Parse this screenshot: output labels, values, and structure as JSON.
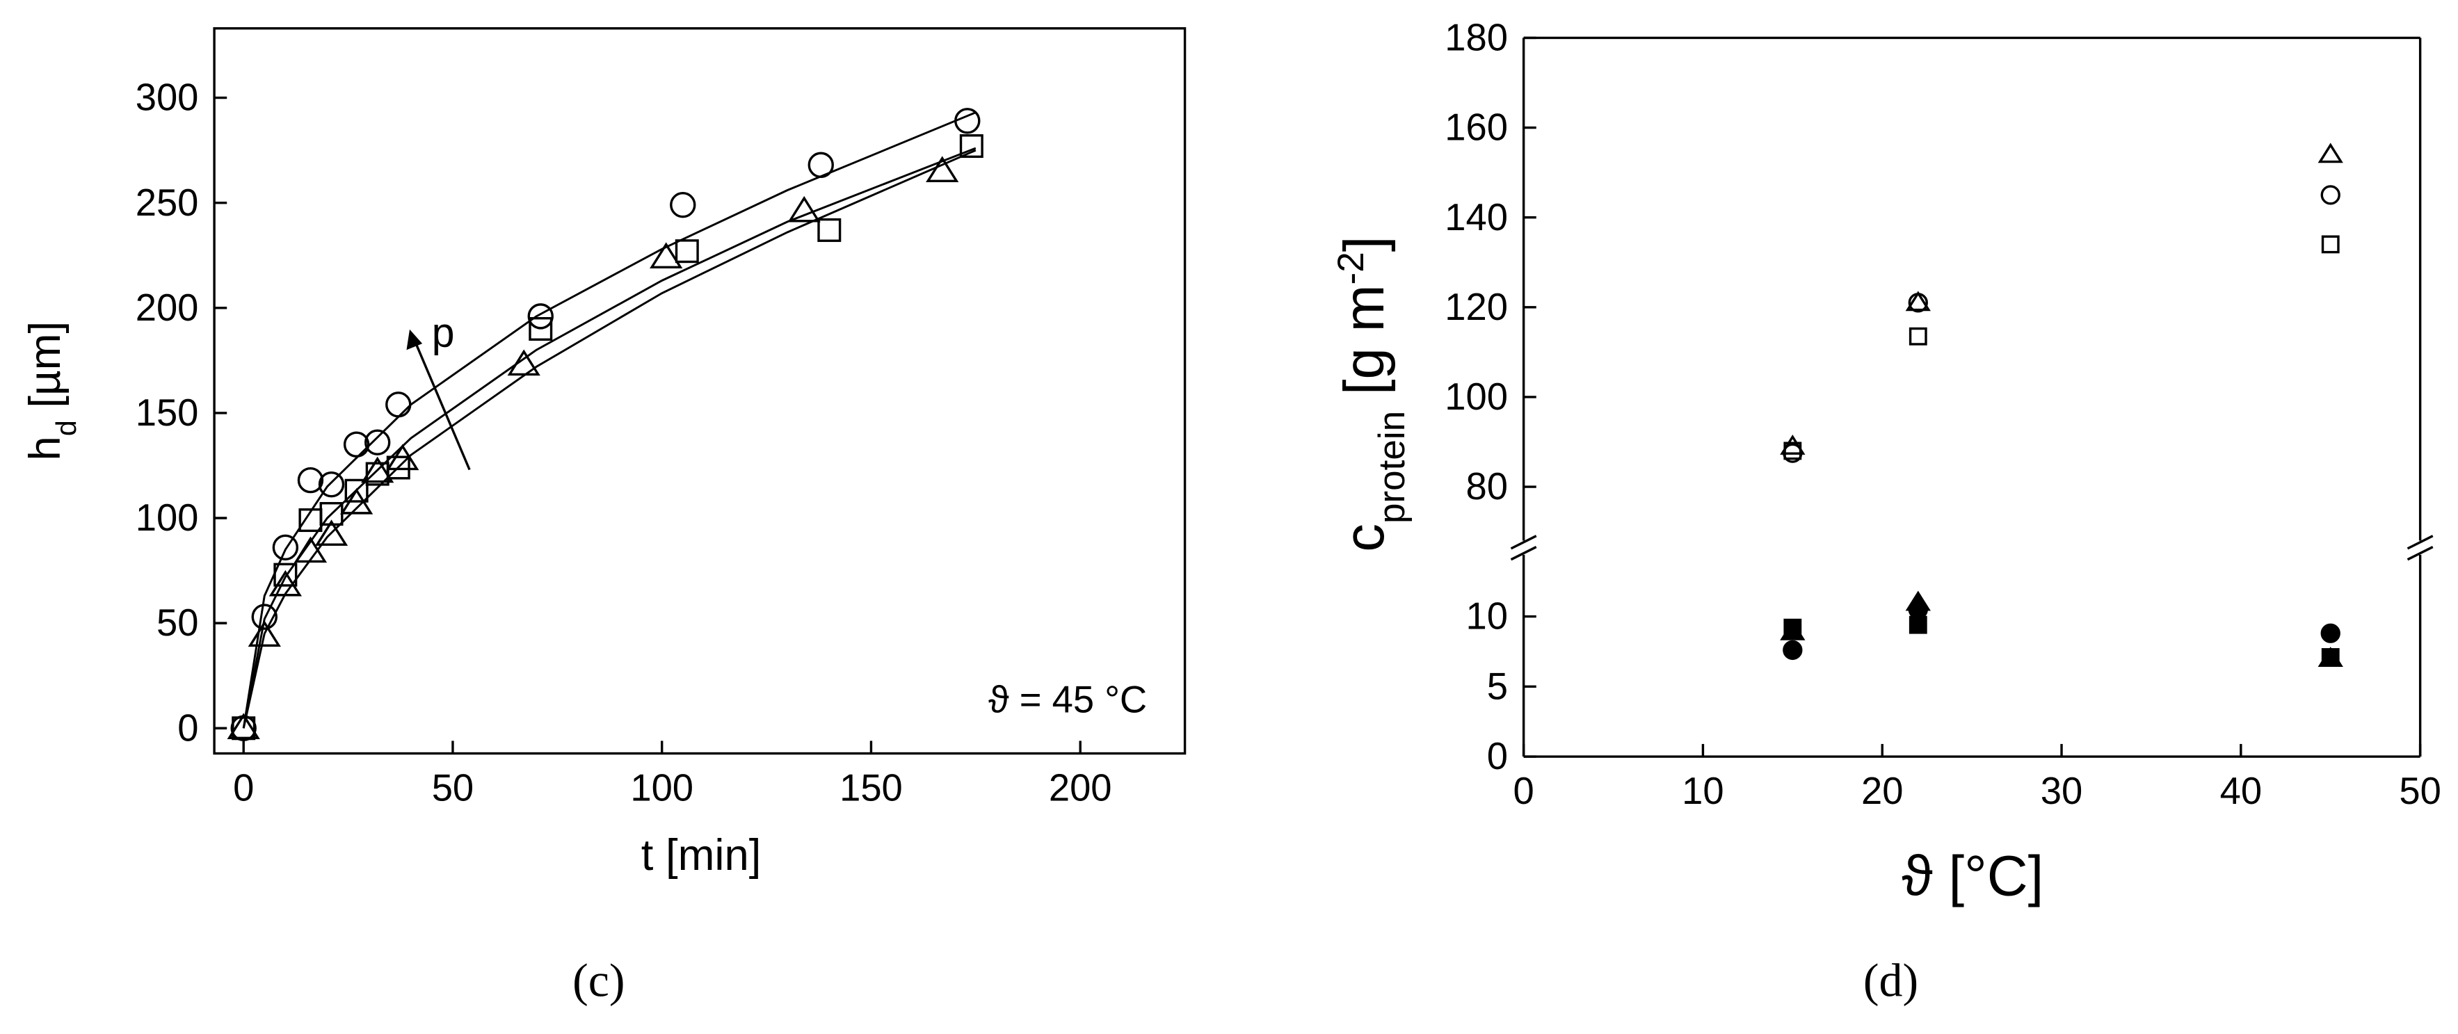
{
  "chart_data": [
    {
      "type": "scatter",
      "caption": "(c)",
      "xlabel": "t [min]",
      "ylabel": [
        {
          "text": "h"
        },
        {
          "text": "d",
          "shift": "sub"
        },
        {
          "text": " [µm]"
        }
      ],
      "annotations": [
        "ϑ = 45 °C",
        "p"
      ],
      "xlim": [
        -7,
        225
      ],
      "xticks": [
        0,
        50,
        100,
        150,
        200
      ],
      "ylim": [
        -12,
        333
      ],
      "yticks": [
        0,
        50,
        100,
        150,
        200,
        250,
        300
      ],
      "series": [
        {
          "marker": "circle",
          "filled": false,
          "color": "#000000",
          "x": [
            0,
            5,
            10,
            16,
            21,
            27,
            32,
            37,
            71,
            105,
            138,
            173
          ],
          "values": [
            0,
            53,
            86,
            118,
            116,
            135,
            136,
            154,
            196,
            249,
            268,
            289
          ]
        },
        {
          "marker": "square",
          "filled": false,
          "color": "#000000",
          "x": [
            0,
            10,
            16,
            21,
            27,
            32,
            37,
            71,
            106,
            140,
            174
          ],
          "values": [
            0,
            73,
            99,
            102,
            113,
            121,
            124,
            190,
            227,
            237,
            277
          ]
        },
        {
          "marker": "triangle",
          "filled": false,
          "color": "#000000",
          "x": [
            0,
            5,
            10,
            16,
            21,
            27,
            32,
            38,
            67,
            101,
            134,
            167
          ],
          "values": [
            0,
            44,
            68,
            84,
            92,
            107,
            122,
            128,
            173,
            224,
            246,
            265
          ]
        }
      ],
      "fits": [
        {
          "color": "#000000",
          "x": [
            0,
            5,
            10,
            20,
            40,
            70,
            100,
            130,
            175
          ],
          "values": [
            0,
            63,
            85,
            115,
            154,
            196,
            228,
            256,
            293
          ]
        },
        {
          "color": "#000000",
          "x": [
            0,
            5,
            10,
            20,
            40,
            70,
            100,
            130,
            175
          ],
          "values": [
            0,
            52,
            72,
            100,
            138,
            180,
            213,
            241,
            276
          ]
        },
        {
          "color": "#000000",
          "x": [
            0,
            5,
            10,
            20,
            40,
            70,
            100,
            130,
            175
          ],
          "values": [
            0,
            45,
            64,
            91,
            130,
            172,
            207,
            236,
            275
          ]
        }
      ]
    },
    {
      "type": "scatter",
      "caption": "(d)",
      "xlabel": "ϑ [°C]",
      "ylabel": [
        {
          "text": "c"
        },
        {
          "text": "protein",
          "shift": "sub"
        },
        {
          "text": " [g m"
        },
        {
          "text": "-2",
          "shift": "super"
        },
        {
          "text": "]"
        }
      ],
      "xlim": [
        0,
        50
      ],
      "xticks": [
        0,
        10,
        20,
        30,
        40,
        50
      ],
      "ylim": [
        0,
        180
      ],
      "y_break": [
        14.4,
        68
      ],
      "yticks": [
        0,
        5,
        10,
        80,
        100,
        120,
        140,
        160,
        180
      ],
      "series": [
        {
          "marker": "triangle",
          "filled": false,
          "color": "#000000",
          "x": [
            15,
            22,
            45
          ],
          "values": [
            89,
            121,
            154
          ]
        },
        {
          "marker": "circle",
          "filled": false,
          "color": "#000000",
          "x": [
            15,
            22,
            45
          ],
          "values": [
            87.5,
            121,
            145
          ]
        },
        {
          "marker": "square",
          "filled": false,
          "color": "#000000",
          "x": [
            15,
            22,
            45
          ],
          "values": [
            88,
            113.5,
            134
          ]
        },
        {
          "marker": "circle",
          "filled": true,
          "color": "#000000",
          "x": [
            15,
            22,
            45
          ],
          "values": [
            7.6,
            10.5,
            8.8
          ]
        },
        {
          "marker": "square",
          "filled": true,
          "color": "#000000",
          "x": [
            15,
            22,
            45
          ],
          "values": [
            9.2,
            9.4,
            7.1
          ]
        },
        {
          "marker": "triangle",
          "filled": true,
          "color": "#000000",
          "x": [
            15,
            22,
            45
          ],
          "values": [
            8.9,
            11.0,
            7.0
          ]
        }
      ]
    }
  ]
}
